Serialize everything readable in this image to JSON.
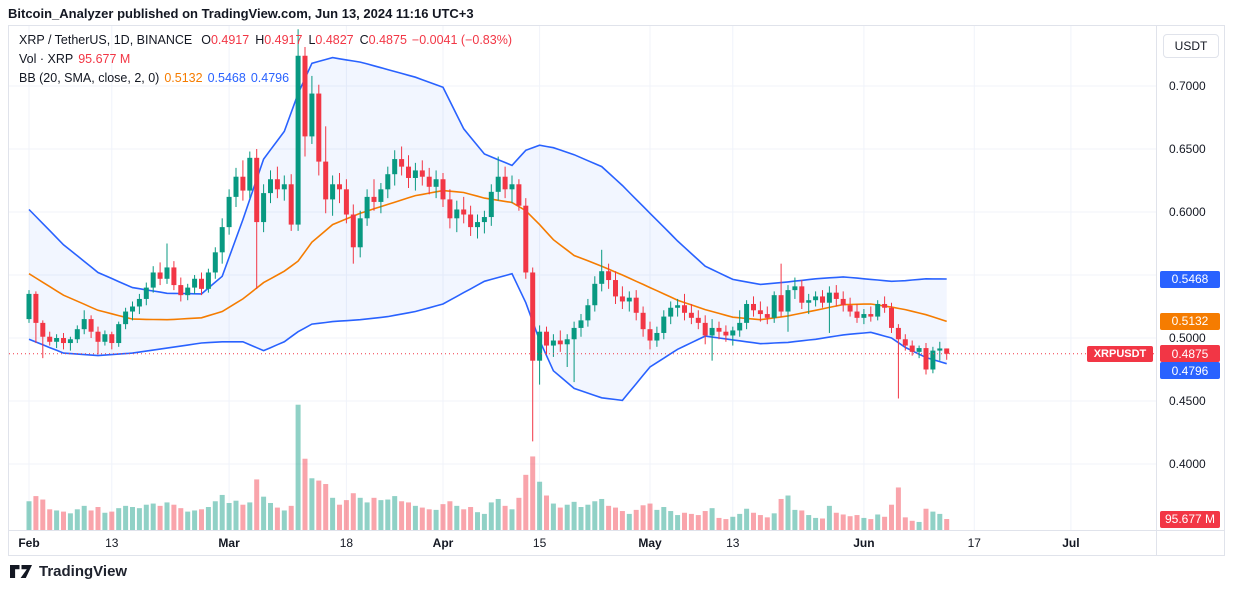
{
  "title_bar": {
    "text": "Bitcoin_Analyzer published on TradingView.com, Jun 13, 2024 11:16 UTC+3"
  },
  "legend": {
    "symbol_line": {
      "symbol": "XRP / TetherUS, 1D, BINANCE",
      "ohlc": [
        {
          "k": "O",
          "v": "0.4917"
        },
        {
          "k": "H",
          "v": "0.4917"
        },
        {
          "k": "L",
          "v": "0.4827"
        },
        {
          "k": "C",
          "v": "0.4875"
        }
      ],
      "change": "−0.0041 (−0.83%)"
    },
    "volume_line": {
      "label": "Vol · XRP",
      "value": "95.677 M"
    },
    "bb_line": {
      "label": "BB (20, SMA, close, 2, 0)",
      "basis": "0.5132",
      "upper": "0.5468",
      "lower": "0.4796"
    }
  },
  "price_axis": {
    "currency_button": "USDT",
    "ticks": [
      {
        "text": "0.7000",
        "price": 0.7
      },
      {
        "text": "0.6500",
        "price": 0.65
      },
      {
        "text": "0.6000",
        "price": 0.6
      },
      {
        "text": "0.5000",
        "price": 0.5
      },
      {
        "text": "0.4500",
        "price": 0.45
      },
      {
        "text": "0.4000",
        "price": 0.4
      }
    ],
    "badges": [
      {
        "text": "0.5468",
        "bg": "#2962ff",
        "price": 0.5468,
        "dy": 0
      },
      {
        "text": "0.5132",
        "bg": "#f57c00",
        "price": 0.5132,
        "dy": 0
      },
      {
        "text": "0.4875",
        "bg": "#f23645",
        "price": 0.4875,
        "dy": 0
      },
      {
        "text": "0.4796",
        "bg": "#2962ff",
        "price": 0.4796,
        "dy": 7
      },
      {
        "text": "95.677 M",
        "bg": "#f23645",
        "y": 493,
        "dy": 0
      }
    ]
  },
  "time_axis": {
    "labels": [
      {
        "text": "Feb",
        "day": 0,
        "major": true
      },
      {
        "text": "13",
        "day": 12,
        "major": false
      },
      {
        "text": "Mar",
        "day": 29,
        "major": true
      },
      {
        "text": "18",
        "day": 46,
        "major": false
      },
      {
        "text": "Apr",
        "day": 60,
        "major": true
      },
      {
        "text": "15",
        "day": 74,
        "major": false
      },
      {
        "text": "May",
        "day": 90,
        "major": true
      },
      {
        "text": "13",
        "day": 102,
        "major": false
      },
      {
        "text": "Jun",
        "day": 121,
        "major": true
      },
      {
        "text": "17",
        "day": 137,
        "major": false
      },
      {
        "text": "Jul",
        "day": 151,
        "major": true
      }
    ]
  },
  "price_line_label": {
    "text": "XRPUSDT"
  },
  "footer": {
    "brand": "TradingView"
  },
  "colors": {
    "up": "#089981",
    "down": "#f23645",
    "vol_up": "rgba(8,153,129,0.45)",
    "vol_down": "rgba(242,54,69,0.45)",
    "band": "#2962ff",
    "band_fill": "rgba(41,98,255,0.06)",
    "basis": "#f57c00",
    "grid": "#f0f3fa",
    "frame": "#e0e3eb",
    "text": "#131722",
    "price_line": "#f23645"
  },
  "chart_data": {
    "type": "candlestick+volume",
    "title": "XRP / TetherUS, 1D, BINANCE",
    "symbol": "XRPUSDT",
    "exchange": "BINANCE",
    "interval": "1D",
    "start_date": "2024-02-01",
    "end_date": "2024-06-13",
    "ylabel": "USDT",
    "ylim": [
      0.396,
      0.748
    ],
    "grid": true,
    "price_gridlines": [
      0.7,
      0.65,
      0.6,
      0.55,
      0.5,
      0.45,
      0.4
    ],
    "last_values": {
      "open": 0.4917,
      "high": 0.4917,
      "low": 0.4827,
      "close": 0.4875,
      "change": -0.0041,
      "change_pct": -0.83,
      "volume_m": 95.677
    },
    "price_line": {
      "price": 0.4875
    },
    "candles_format": [
      "open",
      "high",
      "low",
      "close",
      "volume_m_xrp"
    ],
    "candles": [
      [
        0.515,
        0.538,
        0.512,
        0.535,
        250
      ],
      [
        0.535,
        0.537,
        0.496,
        0.512,
        295
      ],
      [
        0.512,
        0.514,
        0.484,
        0.501,
        265
      ],
      [
        0.501,
        0.505,
        0.494,
        0.497,
        180
      ],
      [
        0.497,
        0.503,
        0.492,
        0.5,
        170
      ],
      [
        0.5,
        0.504,
        0.491,
        0.496,
        160
      ],
      [
        0.496,
        0.501,
        0.49,
        0.499,
        145
      ],
      [
        0.499,
        0.51,
        0.496,
        0.507,
        180
      ],
      [
        0.507,
        0.522,
        0.503,
        0.515,
        210
      ],
      [
        0.515,
        0.518,
        0.5,
        0.505,
        170
      ],
      [
        0.505,
        0.509,
        0.487,
        0.497,
        200
      ],
      [
        0.497,
        0.506,
        0.494,
        0.503,
        150
      ],
      [
        0.503,
        0.505,
        0.491,
        0.496,
        160
      ],
      [
        0.496,
        0.513,
        0.493,
        0.511,
        190
      ],
      [
        0.511,
        0.524,
        0.507,
        0.521,
        210
      ],
      [
        0.521,
        0.529,
        0.514,
        0.525,
        200
      ],
      [
        0.525,
        0.535,
        0.519,
        0.531,
        190
      ],
      [
        0.531,
        0.544,
        0.526,
        0.54,
        220
      ],
      [
        0.54,
        0.557,
        0.536,
        0.552,
        230
      ],
      [
        0.552,
        0.56,
        0.542,
        0.547,
        210
      ],
      [
        0.547,
        0.575,
        0.543,
        0.556,
        240
      ],
      [
        0.556,
        0.561,
        0.538,
        0.542,
        220
      ],
      [
        0.542,
        0.548,
        0.529,
        0.534,
        190
      ],
      [
        0.534,
        0.543,
        0.53,
        0.54,
        160
      ],
      [
        0.54,
        0.55,
        0.535,
        0.547,
        170
      ],
      [
        0.547,
        0.552,
        0.534,
        0.539,
        180
      ],
      [
        0.539,
        0.555,
        0.536,
        0.552,
        200
      ],
      [
        0.552,
        0.572,
        0.547,
        0.568,
        250
      ],
      [
        0.568,
        0.595,
        0.559,
        0.588,
        305
      ],
      [
        0.588,
        0.618,
        0.582,
        0.612,
        235
      ],
      [
        0.612,
        0.635,
        0.604,
        0.628,
        255
      ],
      [
        0.628,
        0.641,
        0.609,
        0.617,
        220
      ],
      [
        0.617,
        0.648,
        0.611,
        0.643,
        240
      ],
      [
        0.643,
        0.65,
        0.539,
        0.592,
        440
      ],
      [
        0.592,
        0.622,
        0.584,
        0.615,
        290
      ],
      [
        0.615,
        0.633,
        0.607,
        0.626,
        235
      ],
      [
        0.626,
        0.636,
        0.611,
        0.618,
        195
      ],
      [
        0.618,
        0.629,
        0.609,
        0.622,
        170
      ],
      [
        0.622,
        0.63,
        0.585,
        0.59,
        210
      ],
      [
        0.59,
        0.745,
        0.585,
        0.724,
        1090
      ],
      [
        0.724,
        0.731,
        0.644,
        0.66,
        620
      ],
      [
        0.66,
        0.708,
        0.654,
        0.694,
        450
      ],
      [
        0.694,
        0.701,
        0.629,
        0.64,
        430
      ],
      [
        0.64,
        0.668,
        0.599,
        0.61,
        400
      ],
      [
        0.61,
        0.629,
        0.597,
        0.622,
        280
      ],
      [
        0.622,
        0.631,
        0.607,
        0.618,
        220
      ],
      [
        0.618,
        0.626,
        0.591,
        0.598,
        260
      ],
      [
        0.598,
        0.606,
        0.559,
        0.572,
        320
      ],
      [
        0.572,
        0.601,
        0.564,
        0.595,
        280
      ],
      [
        0.595,
        0.618,
        0.589,
        0.612,
        240
      ],
      [
        0.612,
        0.626,
        0.601,
        0.608,
        280
      ],
      [
        0.608,
        0.623,
        0.599,
        0.618,
        260
      ],
      [
        0.618,
        0.636,
        0.611,
        0.63,
        265
      ],
      [
        0.63,
        0.649,
        0.621,
        0.642,
        295
      ],
      [
        0.642,
        0.652,
        0.629,
        0.636,
        250
      ],
      [
        0.636,
        0.645,
        0.619,
        0.627,
        240
      ],
      [
        0.627,
        0.639,
        0.617,
        0.633,
        210
      ],
      [
        0.633,
        0.641,
        0.621,
        0.628,
        195
      ],
      [
        0.628,
        0.635,
        0.614,
        0.62,
        180
      ],
      [
        0.62,
        0.633,
        0.611,
        0.626,
        175
      ],
      [
        0.626,
        0.631,
        0.604,
        0.61,
        225
      ],
      [
        0.61,
        0.618,
        0.587,
        0.595,
        250
      ],
      [
        0.595,
        0.609,
        0.584,
        0.602,
        210
      ],
      [
        0.602,
        0.612,
        0.591,
        0.598,
        180
      ],
      [
        0.598,
        0.605,
        0.581,
        0.588,
        200
      ],
      [
        0.588,
        0.598,
        0.579,
        0.592,
        155
      ],
      [
        0.592,
        0.601,
        0.583,
        0.596,
        140
      ],
      [
        0.596,
        0.622,
        0.589,
        0.616,
        240
      ],
      [
        0.616,
        0.644,
        0.609,
        0.628,
        270
      ],
      [
        0.628,
        0.636,
        0.611,
        0.618,
        210
      ],
      [
        0.618,
        0.629,
        0.607,
        0.622,
        180
      ],
      [
        0.622,
        0.626,
        0.601,
        0.605,
        280
      ],
      [
        0.605,
        0.611,
        0.547,
        0.552,
        480
      ],
      [
        0.552,
        0.556,
        0.418,
        0.482,
        640
      ],
      [
        0.482,
        0.51,
        0.463,
        0.505,
        420
      ],
      [
        0.505,
        0.509,
        0.487,
        0.494,
        300
      ],
      [
        0.494,
        0.503,
        0.485,
        0.498,
        230
      ],
      [
        0.498,
        0.506,
        0.489,
        0.495,
        195
      ],
      [
        0.495,
        0.503,
        0.477,
        0.499,
        220
      ],
      [
        0.499,
        0.513,
        0.465,
        0.508,
        245
      ],
      [
        0.508,
        0.519,
        0.501,
        0.514,
        200
      ],
      [
        0.514,
        0.531,
        0.509,
        0.526,
        220
      ],
      [
        0.526,
        0.549,
        0.521,
        0.543,
        250
      ],
      [
        0.543,
        0.57,
        0.537,
        0.553,
        270
      ],
      [
        0.553,
        0.559,
        0.539,
        0.546,
        210
      ],
      [
        0.546,
        0.553,
        0.527,
        0.533,
        195
      ],
      [
        0.533,
        0.541,
        0.523,
        0.529,
        165
      ],
      [
        0.529,
        0.537,
        0.521,
        0.532,
        140
      ],
      [
        0.532,
        0.538,
        0.514,
        0.52,
        175
      ],
      [
        0.52,
        0.525,
        0.501,
        0.507,
        215
      ],
      [
        0.507,
        0.513,
        0.491,
        0.498,
        230
      ],
      [
        0.498,
        0.509,
        0.493,
        0.504,
        175
      ],
      [
        0.504,
        0.522,
        0.499,
        0.517,
        200
      ],
      [
        0.517,
        0.529,
        0.511,
        0.524,
        165
      ],
      [
        0.524,
        0.531,
        0.517,
        0.526,
        130
      ],
      [
        0.526,
        0.535,
        0.514,
        0.52,
        150
      ],
      [
        0.52,
        0.527,
        0.511,
        0.516,
        140
      ],
      [
        0.516,
        0.522,
        0.507,
        0.512,
        130
      ],
      [
        0.512,
        0.518,
        0.495,
        0.502,
        165
      ],
      [
        0.502,
        0.515,
        0.482,
        0.508,
        190
      ],
      [
        0.508,
        0.513,
        0.499,
        0.505,
        105
      ],
      [
        0.505,
        0.51,
        0.497,
        0.502,
        95
      ],
      [
        0.502,
        0.509,
        0.494,
        0.506,
        115
      ],
      [
        0.506,
        0.522,
        0.501,
        0.512,
        140
      ],
      [
        0.512,
        0.53,
        0.507,
        0.527,
        185
      ],
      [
        0.527,
        0.533,
        0.517,
        0.522,
        150
      ],
      [
        0.522,
        0.529,
        0.513,
        0.519,
        130
      ],
      [
        0.519,
        0.525,
        0.511,
        0.516,
        110
      ],
      [
        0.516,
        0.537,
        0.512,
        0.534,
        145
      ],
      [
        0.534,
        0.559,
        0.517,
        0.521,
        270
      ],
      [
        0.521,
        0.542,
        0.505,
        0.538,
        300
      ],
      [
        0.538,
        0.548,
        0.531,
        0.541,
        175
      ],
      [
        0.541,
        0.546,
        0.523,
        0.528,
        170
      ],
      [
        0.528,
        0.535,
        0.519,
        0.53,
        130
      ],
      [
        0.53,
        0.537,
        0.525,
        0.533,
        105
      ],
      [
        0.533,
        0.538,
        0.524,
        0.528,
        100
      ],
      [
        0.528,
        0.541,
        0.504,
        0.536,
        210
      ],
      [
        0.536,
        0.542,
        0.525,
        0.531,
        150
      ],
      [
        0.531,
        0.537,
        0.521,
        0.526,
        135
      ],
      [
        0.526,
        0.532,
        0.517,
        0.521,
        120
      ],
      [
        0.521,
        0.527,
        0.512,
        0.516,
        130
      ],
      [
        0.516,
        0.523,
        0.511,
        0.519,
        105
      ],
      [
        0.519,
        0.525,
        0.513,
        0.517,
        95
      ],
      [
        0.517,
        0.53,
        0.514,
        0.527,
        135
      ],
      [
        0.527,
        0.533,
        0.52,
        0.524,
        115
      ],
      [
        0.524,
        0.528,
        0.504,
        0.508,
        220
      ],
      [
        0.508,
        0.511,
        0.452,
        0.499,
        370
      ],
      [
        0.499,
        0.503,
        0.49,
        0.494,
        110
      ],
      [
        0.494,
        0.498,
        0.486,
        0.489,
        80
      ],
      [
        0.489,
        0.494,
        0.484,
        0.492,
        70
      ],
      [
        0.492,
        0.496,
        0.471,
        0.475,
        185
      ],
      [
        0.475,
        0.493,
        0.472,
        0.49,
        160
      ],
      [
        0.49,
        0.497,
        0.482,
        0.4917,
        140
      ],
      [
        0.4917,
        0.4917,
        0.4827,
        0.4875,
        95.677
      ]
    ],
    "bollinger": {
      "period": 20,
      "source": "close",
      "stddev": 2,
      "current": {
        "basis": 0.5132,
        "upper": 0.5468,
        "lower": 0.4796
      },
      "keypoints_format": [
        "day_index",
        "upper",
        "basis",
        "lower"
      ],
      "keypoints": [
        [
          0,
          0.602,
          0.551,
          0.499
        ],
        [
          5,
          0.574,
          0.534,
          0.488
        ],
        [
          10,
          0.552,
          0.522,
          0.486
        ],
        [
          15,
          0.54,
          0.515,
          0.488
        ],
        [
          20,
          0.5355,
          0.5145,
          0.492
        ],
        [
          25,
          0.535,
          0.516,
          0.496
        ],
        [
          28,
          0.549,
          0.521,
          0.497
        ],
        [
          31,
          0.594,
          0.531,
          0.497
        ],
        [
          34,
          0.642,
          0.544,
          0.49
        ],
        [
          37,
          0.664,
          0.553,
          0.497
        ],
        [
          39,
          0.694,
          0.561,
          0.505
        ],
        [
          41,
          0.718,
          0.576,
          0.511
        ],
        [
          44,
          0.7225,
          0.59,
          0.513
        ],
        [
          48,
          0.719,
          0.599,
          0.5145
        ],
        [
          52,
          0.713,
          0.606,
          0.517
        ],
        [
          56,
          0.707,
          0.613,
          0.521
        ],
        [
          60,
          0.699,
          0.617,
          0.527
        ],
        [
          63,
          0.666,
          0.6155,
          0.536
        ],
        [
          66,
          0.646,
          0.611,
          0.545
        ],
        [
          70,
          0.637,
          0.6075,
          0.551
        ],
        [
          72,
          0.649,
          0.601,
          0.528
        ],
        [
          74,
          0.653,
          0.59,
          0.498
        ],
        [
          76,
          0.651,
          0.578,
          0.474
        ],
        [
          79,
          0.6455,
          0.5655,
          0.46
        ],
        [
          83,
          0.636,
          0.557,
          0.4525
        ],
        [
          86,
          0.621,
          0.55,
          0.4505
        ],
        [
          90,
          0.599,
          0.54,
          0.477
        ],
        [
          94,
          0.577,
          0.53,
          0.491
        ],
        [
          98,
          0.557,
          0.5225,
          0.5015
        ],
        [
          102,
          0.5465,
          0.5165,
          0.4985
        ],
        [
          106,
          0.5425,
          0.5145,
          0.4955
        ],
        [
          110,
          0.5445,
          0.5175,
          0.4965
        ],
        [
          114,
          0.547,
          0.522,
          0.499
        ],
        [
          118,
          0.5485,
          0.5265,
          0.5025
        ],
        [
          122,
          0.5465,
          0.527,
          0.5045
        ],
        [
          125,
          0.545,
          0.5245,
          0.5
        ],
        [
          127,
          0.5455,
          0.5225,
          0.4925
        ],
        [
          130,
          0.547,
          0.5185,
          0.4845
        ],
        [
          133,
          0.5468,
          0.5132,
          0.4796
        ]
      ]
    }
  }
}
